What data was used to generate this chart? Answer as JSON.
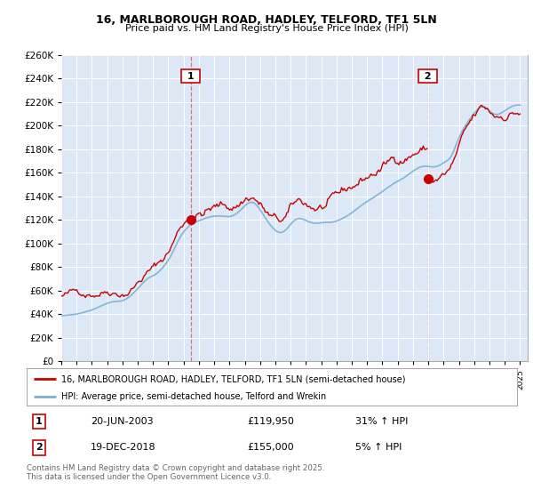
{
  "title": "16, MARLBOROUGH ROAD, HADLEY, TELFORD, TF1 5LN",
  "subtitle": "Price paid vs. HM Land Registry's House Price Index (HPI)",
  "legend_line1": "16, MARLBOROUGH ROAD, HADLEY, TELFORD, TF1 5LN (semi-detached house)",
  "legend_line2": "HPI: Average price, semi-detached house, Telford and Wrekin",
  "footer": "Contains HM Land Registry data © Crown copyright and database right 2025.\nThis data is licensed under the Open Government Licence v3.0.",
  "annotation1_label": "1",
  "annotation1_date": "20-JUN-2003",
  "annotation1_price": "£119,950",
  "annotation1_hpi": "31% ↑ HPI",
  "annotation2_label": "2",
  "annotation2_date": "19-DEC-2018",
  "annotation2_price": "£155,000",
  "annotation2_hpi": "5% ↑ HPI",
  "sale_color": "#cc0000",
  "hpi_color": "#7ab0d4",
  "vline_color": "#dd6666",
  "background_color": "#ffffff",
  "plot_bg_color": "#dce8f5",
  "ylim": [
    0,
    260000
  ],
  "ytick_step": 20000,
  "hpi_data": [
    [
      1995.0,
      38500
    ],
    [
      1995.08,
      38600
    ],
    [
      1995.17,
      38700
    ],
    [
      1995.25,
      38800
    ],
    [
      1995.33,
      38900
    ],
    [
      1995.42,
      39000
    ],
    [
      1995.5,
      39100
    ],
    [
      1995.58,
      39200
    ],
    [
      1995.67,
      39300
    ],
    [
      1995.75,
      39500
    ],
    [
      1995.83,
      39600
    ],
    [
      1995.92,
      39700
    ],
    [
      1996.0,
      39900
    ],
    [
      1996.08,
      40100
    ],
    [
      1996.17,
      40300
    ],
    [
      1996.25,
      40600
    ],
    [
      1996.33,
      40900
    ],
    [
      1996.42,
      41200
    ],
    [
      1996.5,
      41500
    ],
    [
      1996.58,
      41800
    ],
    [
      1996.67,
      42100
    ],
    [
      1996.75,
      42400
    ],
    [
      1996.83,
      42700
    ],
    [
      1996.92,
      43000
    ],
    [
      1997.0,
      43400
    ],
    [
      1997.08,
      43800
    ],
    [
      1997.17,
      44200
    ],
    [
      1997.25,
      44700
    ],
    [
      1997.33,
      45200
    ],
    [
      1997.42,
      45700
    ],
    [
      1997.5,
      46200
    ],
    [
      1997.58,
      46700
    ],
    [
      1997.67,
      47200
    ],
    [
      1997.75,
      47700
    ],
    [
      1997.83,
      48100
    ],
    [
      1997.92,
      48500
    ],
    [
      1998.0,
      49000
    ],
    [
      1998.08,
      49400
    ],
    [
      1998.17,
      49700
    ],
    [
      1998.25,
      50000
    ],
    [
      1998.33,
      50200
    ],
    [
      1998.42,
      50400
    ],
    [
      1998.5,
      50500
    ],
    [
      1998.58,
      50600
    ],
    [
      1998.67,
      50700
    ],
    [
      1998.75,
      50800
    ],
    [
      1998.83,
      50900
    ],
    [
      1998.92,
      51000
    ],
    [
      1999.0,
      51300
    ],
    [
      1999.08,
      51700
    ],
    [
      1999.17,
      52200
    ],
    [
      1999.25,
      52800
    ],
    [
      1999.33,
      53500
    ],
    [
      1999.42,
      54300
    ],
    [
      1999.5,
      55200
    ],
    [
      1999.58,
      56100
    ],
    [
      1999.67,
      57100
    ],
    [
      1999.75,
      58200
    ],
    [
      1999.83,
      59200
    ],
    [
      1999.92,
      60300
    ],
    [
      2000.0,
      61500
    ],
    [
      2000.08,
      62700
    ],
    [
      2000.17,
      63900
    ],
    [
      2000.25,
      65100
    ],
    [
      2000.33,
      66300
    ],
    [
      2000.42,
      67400
    ],
    [
      2000.5,
      68400
    ],
    [
      2000.58,
      69300
    ],
    [
      2000.67,
      70100
    ],
    [
      2000.75,
      70800
    ],
    [
      2000.83,
      71400
    ],
    [
      2000.92,
      71900
    ],
    [
      2001.0,
      72400
    ],
    [
      2001.08,
      73000
    ],
    [
      2001.17,
      73700
    ],
    [
      2001.25,
      74500
    ],
    [
      2001.33,
      75400
    ],
    [
      2001.42,
      76400
    ],
    [
      2001.5,
      77500
    ],
    [
      2001.58,
      78700
    ],
    [
      2001.67,
      79900
    ],
    [
      2001.75,
      81200
    ],
    [
      2001.83,
      82500
    ],
    [
      2001.92,
      84000
    ],
    [
      2002.0,
      85700
    ],
    [
      2002.08,
      87500
    ],
    [
      2002.17,
      89500
    ],
    [
      2002.25,
      91600
    ],
    [
      2002.33,
      93800
    ],
    [
      2002.42,
      96100
    ],
    [
      2002.5,
      98400
    ],
    [
      2002.58,
      100600
    ],
    [
      2002.67,
      102700
    ],
    [
      2002.75,
      104700
    ],
    [
      2002.83,
      106500
    ],
    [
      2002.92,
      108100
    ],
    [
      2003.0,
      109600
    ],
    [
      2003.08,
      110900
    ],
    [
      2003.17,
      112100
    ],
    [
      2003.25,
      113200
    ],
    [
      2003.33,
      114200
    ],
    [
      2003.42,
      115100
    ],
    [
      2003.5,
      115900
    ],
    [
      2003.58,
      116600
    ],
    [
      2003.67,
      117200
    ],
    [
      2003.75,
      117800
    ],
    [
      2003.83,
      118300
    ],
    [
      2003.92,
      118700
    ],
    [
      2004.0,
      119100
    ],
    [
      2004.08,
      119500
    ],
    [
      2004.17,
      119900
    ],
    [
      2004.25,
      120300
    ],
    [
      2004.33,
      120700
    ],
    [
      2004.42,
      121100
    ],
    [
      2004.5,
      121500
    ],
    [
      2004.58,
      121900
    ],
    [
      2004.67,
      122200
    ],
    [
      2004.75,
      122500
    ],
    [
      2004.83,
      122700
    ],
    [
      2004.92,
      122900
    ],
    [
      2005.0,
      123000
    ],
    [
      2005.08,
      123100
    ],
    [
      2005.17,
      123200
    ],
    [
      2005.25,
      123200
    ],
    [
      2005.33,
      123200
    ],
    [
      2005.42,
      123100
    ],
    [
      2005.5,
      123000
    ],
    [
      2005.58,
      122900
    ],
    [
      2005.67,
      122800
    ],
    [
      2005.75,
      122700
    ],
    [
      2005.83,
      122600
    ],
    [
      2005.92,
      122600
    ],
    [
      2006.0,
      122700
    ],
    [
      2006.08,
      122900
    ],
    [
      2006.17,
      123200
    ],
    [
      2006.25,
      123600
    ],
    [
      2006.33,
      124200
    ],
    [
      2006.42,
      124900
    ],
    [
      2006.5,
      125700
    ],
    [
      2006.58,
      126500
    ],
    [
      2006.67,
      127500
    ],
    [
      2006.75,
      128500
    ],
    [
      2006.83,
      129500
    ],
    [
      2006.92,
      130600
    ],
    [
      2007.0,
      131700
    ],
    [
      2007.08,
      132700
    ],
    [
      2007.17,
      133500
    ],
    [
      2007.25,
      134200
    ],
    [
      2007.33,
      134600
    ],
    [
      2007.42,
      134800
    ],
    [
      2007.5,
      134700
    ],
    [
      2007.58,
      134300
    ],
    [
      2007.67,
      133600
    ],
    [
      2007.75,
      132600
    ],
    [
      2007.83,
      131400
    ],
    [
      2007.92,
      130000
    ],
    [
      2008.0,
      128500
    ],
    [
      2008.08,
      126900
    ],
    [
      2008.17,
      125200
    ],
    [
      2008.25,
      123500
    ],
    [
      2008.33,
      121800
    ],
    [
      2008.42,
      120100
    ],
    [
      2008.5,
      118500
    ],
    [
      2008.58,
      117000
    ],
    [
      2008.67,
      115600
    ],
    [
      2008.75,
      114300
    ],
    [
      2008.83,
      113100
    ],
    [
      2008.92,
      112000
    ],
    [
      2009.0,
      111000
    ],
    [
      2009.08,
      110200
    ],
    [
      2009.17,
      109600
    ],
    [
      2009.25,
      109200
    ],
    [
      2009.33,
      109100
    ],
    [
      2009.42,
      109300
    ],
    [
      2009.5,
      109700
    ],
    [
      2009.58,
      110400
    ],
    [
      2009.67,
      111300
    ],
    [
      2009.75,
      112300
    ],
    [
      2009.83,
      113500
    ],
    [
      2009.92,
      114800
    ],
    [
      2010.0,
      116100
    ],
    [
      2010.08,
      117400
    ],
    [
      2010.17,
      118500
    ],
    [
      2010.25,
      119400
    ],
    [
      2010.33,
      120100
    ],
    [
      2010.42,
      120600
    ],
    [
      2010.5,
      120900
    ],
    [
      2010.58,
      121000
    ],
    [
      2010.67,
      120900
    ],
    [
      2010.75,
      120700
    ],
    [
      2010.83,
      120300
    ],
    [
      2010.92,
      119900
    ],
    [
      2011.0,
      119400
    ],
    [
      2011.08,
      118900
    ],
    [
      2011.17,
      118400
    ],
    [
      2011.25,
      118000
    ],
    [
      2011.33,
      117600
    ],
    [
      2011.42,
      117300
    ],
    [
      2011.5,
      117100
    ],
    [
      2011.58,
      117000
    ],
    [
      2011.67,
      117000
    ],
    [
      2011.75,
      117000
    ],
    [
      2011.83,
      117100
    ],
    [
      2011.92,
      117200
    ],
    [
      2012.0,
      117400
    ],
    [
      2012.08,
      117500
    ],
    [
      2012.17,
      117600
    ],
    [
      2012.25,
      117700
    ],
    [
      2012.33,
      117700
    ],
    [
      2012.42,
      117700
    ],
    [
      2012.5,
      117700
    ],
    [
      2012.58,
      117700
    ],
    [
      2012.67,
      117800
    ],
    [
      2012.75,
      118000
    ],
    [
      2012.83,
      118200
    ],
    [
      2012.92,
      118500
    ],
    [
      2013.0,
      118900
    ],
    [
      2013.08,
      119300
    ],
    [
      2013.17,
      119700
    ],
    [
      2013.25,
      120200
    ],
    [
      2013.33,
      120700
    ],
    [
      2013.42,
      121200
    ],
    [
      2013.5,
      121800
    ],
    [
      2013.58,
      122400
    ],
    [
      2013.67,
      123000
    ],
    [
      2013.75,
      123700
    ],
    [
      2013.83,
      124400
    ],
    [
      2013.92,
      125100
    ],
    [
      2014.0,
      125900
    ],
    [
      2014.08,
      126700
    ],
    [
      2014.17,
      127500
    ],
    [
      2014.25,
      128400
    ],
    [
      2014.33,
      129200
    ],
    [
      2014.42,
      130100
    ],
    [
      2014.5,
      130900
    ],
    [
      2014.58,
      131700
    ],
    [
      2014.67,
      132500
    ],
    [
      2014.75,
      133300
    ],
    [
      2014.83,
      134000
    ],
    [
      2014.92,
      134700
    ],
    [
      2015.0,
      135400
    ],
    [
      2015.08,
      136100
    ],
    [
      2015.17,
      136800
    ],
    [
      2015.25,
      137500
    ],
    [
      2015.33,
      138200
    ],
    [
      2015.42,
      138900
    ],
    [
      2015.5,
      139600
    ],
    [
      2015.58,
      140300
    ],
    [
      2015.67,
      141000
    ],
    [
      2015.75,
      141700
    ],
    [
      2015.83,
      142400
    ],
    [
      2015.92,
      143100
    ],
    [
      2016.0,
      143900
    ],
    [
      2016.08,
      144700
    ],
    [
      2016.17,
      145500
    ],
    [
      2016.25,
      146300
    ],
    [
      2016.33,
      147100
    ],
    [
      2016.42,
      147900
    ],
    [
      2016.5,
      148700
    ],
    [
      2016.58,
      149400
    ],
    [
      2016.67,
      150100
    ],
    [
      2016.75,
      150800
    ],
    [
      2016.83,
      151400
    ],
    [
      2016.92,
      152000
    ],
    [
      2017.0,
      152600
    ],
    [
      2017.08,
      153200
    ],
    [
      2017.17,
      153800
    ],
    [
      2017.25,
      154400
    ],
    [
      2017.33,
      155000
    ],
    [
      2017.42,
      155700
    ],
    [
      2017.5,
      156400
    ],
    [
      2017.58,
      157200
    ],
    [
      2017.67,
      158000
    ],
    [
      2017.75,
      158800
    ],
    [
      2017.83,
      159600
    ],
    [
      2017.92,
      160400
    ],
    [
      2018.0,
      161200
    ],
    [
      2018.08,
      162000
    ],
    [
      2018.17,
      162700
    ],
    [
      2018.25,
      163300
    ],
    [
      2018.33,
      163900
    ],
    [
      2018.42,
      164400
    ],
    [
      2018.5,
      164800
    ],
    [
      2018.58,
      165100
    ],
    [
      2018.67,
      165300
    ],
    [
      2018.75,
      165400
    ],
    [
      2018.83,
      165400
    ],
    [
      2018.92,
      165300
    ],
    [
      2019.0,
      165200
    ],
    [
      2019.08,
      165000
    ],
    [
      2019.17,
      164900
    ],
    [
      2019.25,
      164800
    ],
    [
      2019.33,
      164800
    ],
    [
      2019.42,
      164900
    ],
    [
      2019.5,
      165100
    ],
    [
      2019.58,
      165400
    ],
    [
      2019.67,
      165800
    ],
    [
      2019.75,
      166300
    ],
    [
      2019.83,
      166900
    ],
    [
      2019.92,
      167600
    ],
    [
      2020.0,
      168300
    ],
    [
      2020.08,
      169000
    ],
    [
      2020.17,
      169700
    ],
    [
      2020.25,
      170300
    ],
    [
      2020.33,
      171100
    ],
    [
      2020.42,
      172200
    ],
    [
      2020.5,
      173800
    ],
    [
      2020.58,
      175900
    ],
    [
      2020.67,
      178400
    ],
    [
      2020.75,
      181100
    ],
    [
      2020.83,
      183900
    ],
    [
      2020.92,
      186600
    ],
    [
      2021.0,
      189200
    ],
    [
      2021.08,
      191600
    ],
    [
      2021.17,
      193800
    ],
    [
      2021.25,
      195900
    ],
    [
      2021.33,
      197800
    ],
    [
      2021.42,
      199600
    ],
    [
      2021.5,
      201300
    ],
    [
      2021.58,
      202900
    ],
    [
      2021.67,
      204500
    ],
    [
      2021.75,
      206000
    ],
    [
      2021.83,
      207500
    ],
    [
      2021.92,
      208900
    ],
    [
      2022.0,
      210300
    ],
    [
      2022.08,
      211600
    ],
    [
      2022.17,
      212800
    ],
    [
      2022.25,
      213900
    ],
    [
      2022.33,
      214800
    ],
    [
      2022.42,
      215500
    ],
    [
      2022.5,
      215900
    ],
    [
      2022.58,
      215900
    ],
    [
      2022.67,
      215600
    ],
    [
      2022.75,
      215000
    ],
    [
      2022.83,
      214200
    ],
    [
      2022.92,
      213300
    ],
    [
      2023.0,
      212300
    ],
    [
      2023.08,
      211400
    ],
    [
      2023.17,
      210600
    ],
    [
      2023.25,
      210000
    ],
    [
      2023.33,
      209600
    ],
    [
      2023.42,
      209400
    ],
    [
      2023.5,
      209400
    ],
    [
      2023.58,
      209600
    ],
    [
      2023.67,
      210000
    ],
    [
      2023.75,
      210500
    ],
    [
      2023.83,
      211100
    ],
    [
      2023.92,
      211800
    ],
    [
      2024.0,
      212500
    ],
    [
      2024.08,
      213200
    ],
    [
      2024.17,
      213900
    ],
    [
      2024.25,
      214600
    ],
    [
      2024.33,
      215200
    ],
    [
      2024.42,
      215800
    ],
    [
      2024.5,
      216300
    ],
    [
      2024.58,
      216700
    ],
    [
      2024.67,
      217000
    ],
    [
      2024.75,
      217200
    ],
    [
      2024.83,
      217300
    ],
    [
      2024.92,
      217300
    ],
    [
      2025.0,
      217200
    ]
  ],
  "sale1_x": 2003.47,
  "sale1_price": 119950,
  "sale2_x": 2018.97,
  "sale2_price": 155000,
  "noise_seed": 42,
  "xmin": 1995,
  "xmax": 2025.5
}
